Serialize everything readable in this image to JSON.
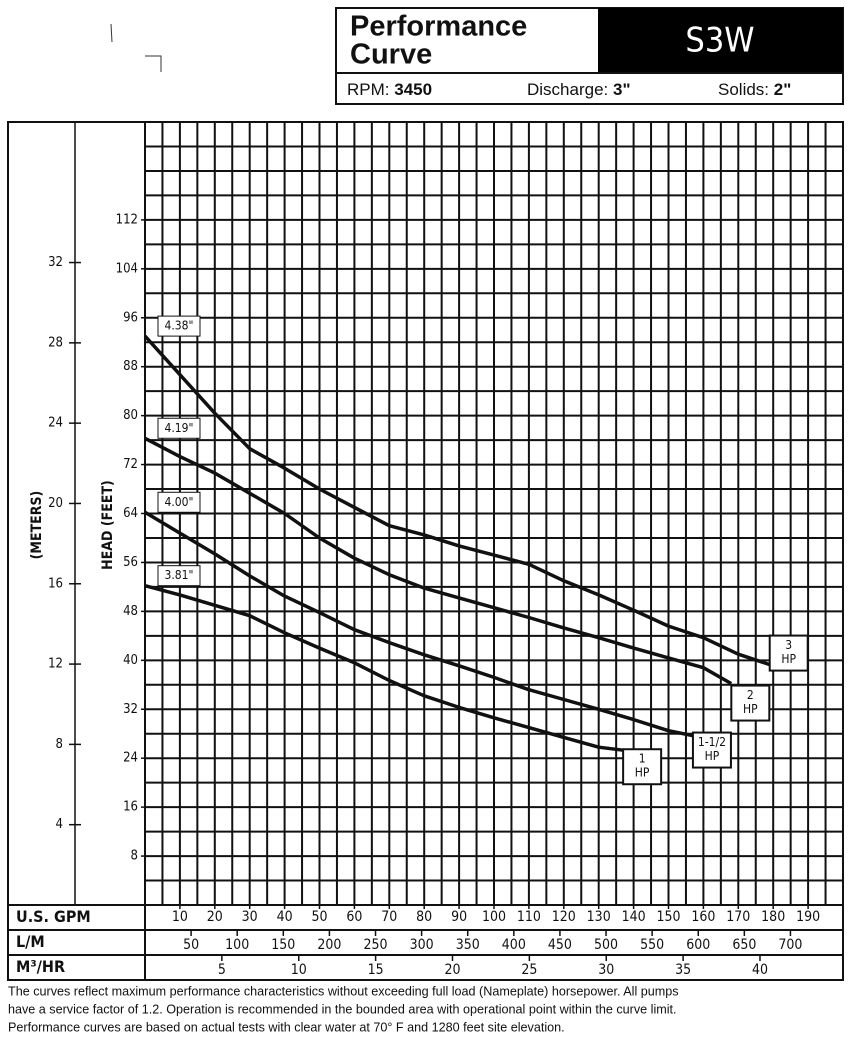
{
  "header": {
    "title_line1": "Performance",
    "title_line2": "Curve",
    "model": "S3W",
    "rpm_label": "RPM:",
    "rpm": "3450",
    "discharge_label": "Discharge:",
    "discharge": "3\"",
    "solids_label": "Solids:",
    "solids": "2\""
  },
  "chart_data": {
    "type": "line",
    "y_label": "HEAD (FEET)",
    "y2_label": "(METERS)",
    "x_label": "U.S. GPM",
    "xlim": [
      0,
      200
    ],
    "xticks": [
      10,
      20,
      30,
      40,
      50,
      60,
      70,
      80,
      90,
      100,
      110,
      120,
      130,
      140,
      150,
      160,
      170,
      180,
      190
    ],
    "ylim": [
      0,
      128
    ],
    "yticks": [
      8,
      16,
      24,
      32,
      40,
      48,
      56,
      64,
      72,
      80,
      88,
      96,
      104,
      112
    ],
    "y2lim": [
      0,
      39
    ],
    "y2ticks": [
      4,
      8,
      12,
      16,
      20,
      24,
      28,
      32
    ],
    "x2": {
      "label": "L/M",
      "lim": [
        0,
        757
      ],
      "ticks": [
        50,
        100,
        150,
        200,
        250,
        300,
        350,
        400,
        450,
        500,
        550,
        600,
        650,
        700
      ]
    },
    "x3": {
      "label": "M³/HR",
      "lim": [
        0,
        45.4
      ],
      "ticks": [
        5,
        10,
        15,
        20,
        25,
        30,
        35,
        40
      ]
    },
    "grid": true,
    "xgrid": [
      5,
      10,
      15,
      20,
      25,
      30,
      35,
      40,
      45,
      50,
      55,
      60,
      65,
      70,
      75,
      80,
      85,
      90,
      95,
      100,
      105,
      110,
      115,
      120,
      125,
      130,
      135,
      140,
      145,
      150,
      155,
      160,
      165,
      170,
      175,
      180,
      185,
      190,
      195
    ],
    "ygrid": [
      4,
      8,
      12,
      16,
      20,
      24,
      28,
      32,
      36,
      40,
      44,
      48,
      52,
      56,
      60,
      64,
      68,
      72,
      76,
      80,
      84,
      88,
      92,
      96,
      100,
      104,
      108,
      112,
      116,
      120,
      124
    ],
    "hp_unit": "HP",
    "series": [
      {
        "name": "4.38\"",
        "hp": "3",
        "color": "#111111",
        "x": [
          0,
          20,
          30,
          40,
          50,
          60,
          70,
          80,
          90,
          100,
          110,
          120,
          130,
          140,
          150,
          160,
          170,
          179
        ],
        "values": [
          93,
          80.4,
          74.6,
          71.4,
          68,
          65,
          62,
          60.5,
          58.7,
          57.2,
          55.7,
          53,
          50.7,
          48.2,
          45.6,
          43.7,
          41,
          39.3
        ]
      },
      {
        "name": "4.19\"",
        "hp": "2",
        "color": "#111111",
        "x": [
          0,
          10,
          20,
          30,
          40,
          50,
          60,
          70,
          80,
          90,
          100,
          110,
          120,
          130,
          140,
          150,
          160,
          168
        ],
        "values": [
          76.3,
          73.3,
          70.6,
          67.3,
          64,
          60,
          56.7,
          54,
          51.8,
          50.2,
          48.6,
          47,
          45.3,
          43.7,
          42,
          40.4,
          38.8,
          36.2
        ]
      },
      {
        "name": "4.00\"",
        "hp": "1-1/2",
        "color": "#111111",
        "x": [
          0,
          10,
          20,
          30,
          40,
          50,
          60,
          70,
          80,
          90,
          100,
          110,
          120,
          130,
          140,
          150,
          157
        ],
        "values": [
          64.2,
          60.8,
          57.4,
          53.8,
          50.5,
          47.8,
          45,
          42.9,
          40.9,
          39.1,
          37.2,
          35.2,
          33.6,
          32,
          30.3,
          28.5,
          27.7
        ]
      },
      {
        "name": "3.81\"",
        "hp": "1",
        "color": "#111111",
        "x": [
          0,
          10,
          20,
          30,
          40,
          50,
          60,
          70,
          80,
          90,
          100,
          110,
          120,
          130,
          137
        ],
        "values": [
          52.2,
          50.7,
          49,
          47.3,
          44.5,
          42,
          39.6,
          36.7,
          34.2,
          32.3,
          30.6,
          29,
          27.4,
          25.8,
          25.3
        ]
      }
    ]
  },
  "footer": [
    "The curves reflect maximum performance characteristics without exceeding full load (Nameplate) horsepower. All pumps",
    "have a service factor of 1.2. Operation is recommended in the bounded area with operational point within the curve limit.",
    "Performance curves are based on actual tests with clear water at 70° F and 1280 feet site elevation."
  ]
}
